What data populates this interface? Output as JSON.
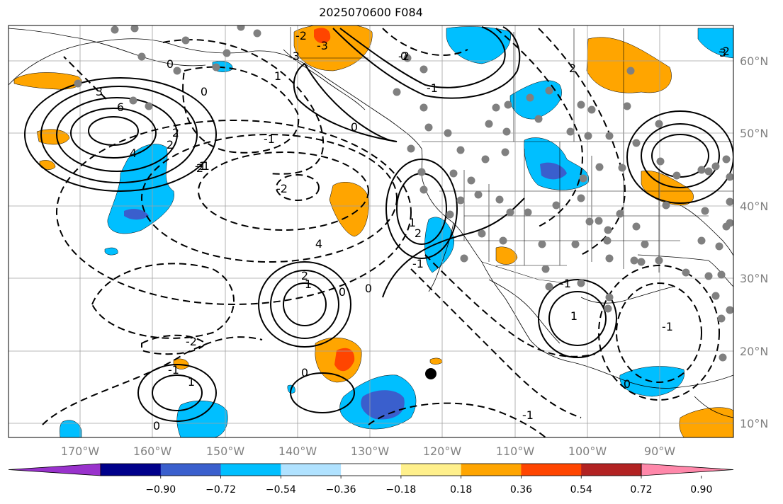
{
  "title": "2025070600 F084",
  "map": {
    "lon_ticks": [
      "170°W",
      "160°W",
      "150°W",
      "140°W",
      "130°W",
      "120°W",
      "110°W",
      "100°W",
      "90°W"
    ],
    "lat_ticks": [
      "60°N",
      "50°N",
      "40°N",
      "30°N",
      "20°N",
      "10°N"
    ],
    "grid": true
  },
  "colorbar": {
    "labels": [
      "−0.90",
      "−0.72",
      "−0.54",
      "−0.36",
      "−0.18",
      "0.18",
      "0.36",
      "0.54",
      "0.72",
      "0.90"
    ],
    "colors": [
      "#9932cc",
      "#00008b",
      "#3a5fcd",
      "#00bfff",
      "#b0e2ff",
      "#ffffff",
      "#fff08c",
      "#ffa500",
      "#ff4500",
      "#b22222",
      "#ff88aa"
    ]
  },
  "contour_labels": [
    "6",
    "4",
    "3",
    "2",
    "2",
    "2",
    "1",
    "0",
    "0",
    "-1",
    "-1",
    "-2",
    "-2",
    "-3",
    "-3",
    "-2",
    "-1",
    "0",
    "1",
    "2",
    "4",
    "-1",
    "0",
    "1",
    "2",
    "2",
    "3",
    "0",
    "-1",
    "-2",
    "-1",
    "0",
    "1",
    "0",
    "0",
    "-1",
    "-2",
    "-1",
    "-1",
    "0",
    "1"
  ],
  "colors": {
    "orange": "#ffa500",
    "red": "#ff4500",
    "lightblue": "#00bfff",
    "blue": "#3a5fcd",
    "station": "#808080"
  }
}
